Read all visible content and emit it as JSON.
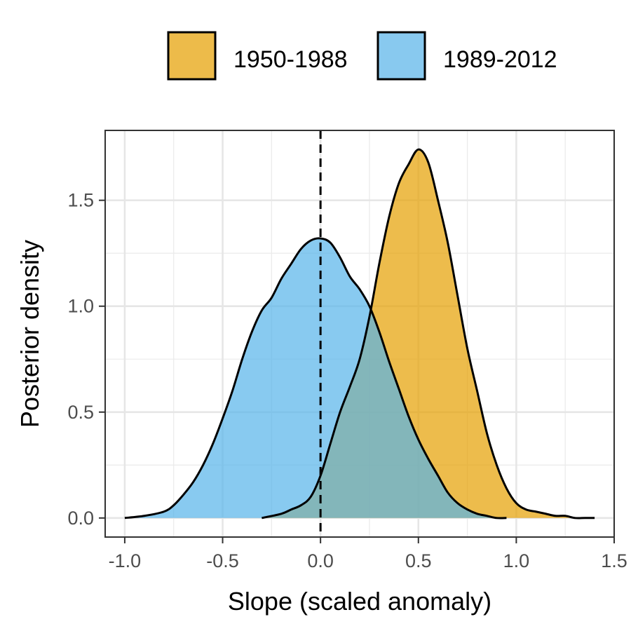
{
  "chart_data": {
    "type": "area",
    "title": "",
    "xlabel": "Slope (scaled anomaly)",
    "ylabel": "Posterior density",
    "xlim": [
      -1.1,
      1.5
    ],
    "ylim": [
      -0.09,
      1.83
    ],
    "x_ticks": [
      -1.0,
      -0.5,
      0.0,
      0.5,
      1.0,
      1.5
    ],
    "x_tick_labels": [
      "-1.0",
      "-0.5",
      "0.0",
      "0.5",
      "1.0",
      "1.5"
    ],
    "y_ticks": [
      0.0,
      0.5,
      1.0,
      1.5
    ],
    "y_tick_labels": [
      "0.0",
      "0.5",
      "1.0",
      "1.5"
    ],
    "grid": true,
    "legend_position": "top",
    "reference_line": {
      "x": 0.0,
      "style": "dashed"
    },
    "series": [
      {
        "name": "1950-1988",
        "color": "#E69F00",
        "x": [
          -0.3,
          -0.2,
          -0.15,
          -0.1,
          -0.05,
          0.0,
          0.05,
          0.1,
          0.15,
          0.2,
          0.25,
          0.3,
          0.35,
          0.4,
          0.45,
          0.5,
          0.55,
          0.6,
          0.65,
          0.7,
          0.75,
          0.8,
          0.85,
          0.9,
          0.95,
          1.0,
          1.05,
          1.1,
          1.15,
          1.2,
          1.25,
          1.3,
          1.35,
          1.4
        ],
        "y": [
          0.0,
          0.02,
          0.04,
          0.06,
          0.1,
          0.2,
          0.35,
          0.5,
          0.62,
          0.75,
          0.95,
          1.2,
          1.42,
          1.58,
          1.67,
          1.74,
          1.68,
          1.5,
          1.3,
          1.05,
          0.8,
          0.6,
          0.4,
          0.25,
          0.14,
          0.07,
          0.04,
          0.03,
          0.02,
          0.01,
          0.01,
          0.0,
          0.0,
          0.0
        ]
      },
      {
        "name": "1989-2012",
        "color": "#56B4E9",
        "x": [
          -1.0,
          -0.9,
          -0.8,
          -0.75,
          -0.7,
          -0.65,
          -0.6,
          -0.55,
          -0.5,
          -0.45,
          -0.4,
          -0.35,
          -0.3,
          -0.25,
          -0.2,
          -0.15,
          -0.1,
          -0.05,
          0.0,
          0.05,
          0.1,
          0.15,
          0.2,
          0.25,
          0.3,
          0.35,
          0.4,
          0.45,
          0.5,
          0.55,
          0.6,
          0.65,
          0.7,
          0.75,
          0.8,
          0.85,
          0.9,
          0.95
        ],
        "y": [
          0.0,
          0.01,
          0.03,
          0.06,
          0.11,
          0.17,
          0.25,
          0.35,
          0.47,
          0.6,
          0.75,
          0.88,
          0.98,
          1.04,
          1.13,
          1.2,
          1.27,
          1.31,
          1.32,
          1.3,
          1.23,
          1.14,
          1.08,
          1.0,
          0.88,
          0.74,
          0.61,
          0.48,
          0.37,
          0.28,
          0.2,
          0.12,
          0.07,
          0.04,
          0.02,
          0.01,
          0.0,
          0.0
        ]
      }
    ]
  }
}
